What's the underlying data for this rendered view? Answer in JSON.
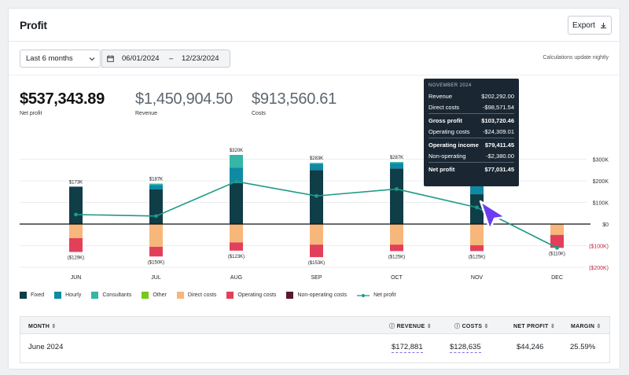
{
  "header": {
    "title": "Profit",
    "export_label": "Export"
  },
  "filters": {
    "period": "Last 6 months",
    "start_date": "06/01/2024",
    "end_date": "12/23/2024",
    "date_separator": "–",
    "note": "Calculations update nightly"
  },
  "kpis": [
    {
      "value": "$537,343.89",
      "label": "Net profit"
    },
    {
      "value": "$1,450,904.50",
      "label": "Revenue"
    },
    {
      "value": "$913,560.61",
      "label": "Costs"
    }
  ],
  "chart_data": {
    "type": "bar",
    "categories": [
      "JUN",
      "JUL",
      "AUG",
      "SEP",
      "OCT",
      "NOV",
      "DEC"
    ],
    "y_ticks": [
      "$300K",
      "$200K",
      "$100K",
      "$0",
      "($100K)",
      "($200K)"
    ],
    "ylim": [
      -200,
      300
    ],
    "revenue_labels": [
      "$173K",
      "$187K",
      "$320K",
      "$283K",
      "$287K",
      "",
      ""
    ],
    "cost_labels": [
      "($129K)",
      "($150K)",
      "($123K)",
      "($153K)",
      "($125K)",
      "($125K)",
      "($110K)"
    ],
    "positive_series": [
      {
        "name": "Fixed",
        "values": [
          173,
          160,
          190,
          250,
          257,
          138,
          0
        ]
      },
      {
        "name": "Hourly",
        "values": [
          0,
          20,
          70,
          28,
          25,
          50,
          0
        ]
      },
      {
        "name": "Consultants",
        "values": [
          0,
          7,
          60,
          5,
          5,
          14,
          0
        ]
      }
    ],
    "negative_series": [
      {
        "name": "Direct costs",
        "values": [
          -65,
          -105,
          -85,
          -95,
          -95,
          -98,
          -50
        ]
      },
      {
        "name": "Operating costs",
        "values": [
          -64,
          -45,
          -38,
          -58,
          -30,
          -27,
          -60
        ]
      }
    ],
    "net_profit": [
      44,
      37,
      197,
      130,
      162,
      77,
      -110
    ]
  },
  "legend": [
    {
      "name": "Fixed",
      "color": "#0f3d48"
    },
    {
      "name": "Hourly",
      "color": "#0e8aa5"
    },
    {
      "name": "Consultants",
      "color": "#36b6a6"
    },
    {
      "name": "Other",
      "color": "#79c61f"
    },
    {
      "name": "Direct costs",
      "color": "#f7b77a"
    },
    {
      "name": "Operating costs",
      "color": "#e2405a"
    },
    {
      "name": "Non-operating costs",
      "color": "#5a1730"
    },
    {
      "name": "Net profit",
      "color": "#1d9b86"
    }
  ],
  "tooltip": {
    "title": "NOVEMBER 2024",
    "rows": [
      {
        "label": "Revenue",
        "value": "$202,292.00"
      },
      {
        "label": "Direct costs",
        "value": "-$98,571.54"
      },
      {
        "label": "Gross profit",
        "value": "$103,720.46"
      },
      {
        "label": "Operating costs",
        "value": "-$24,309.01"
      },
      {
        "label": "Operating income",
        "value": "$79,411.45"
      },
      {
        "label": "Non-operating",
        "value": "-$2,380.00"
      },
      {
        "label": "Net profit",
        "value": "$77,031.45"
      }
    ]
  },
  "table": {
    "headers": {
      "month": "MONTH",
      "revenue": "REVENUE",
      "costs": "COSTS",
      "net_profit": "NET PROFIT",
      "margin": "MARGIN"
    },
    "rows": [
      {
        "month": "June 2024",
        "revenue": "$172,881",
        "costs": "$128,635",
        "net_profit": "$44,246",
        "margin": "25.59%"
      }
    ]
  }
}
